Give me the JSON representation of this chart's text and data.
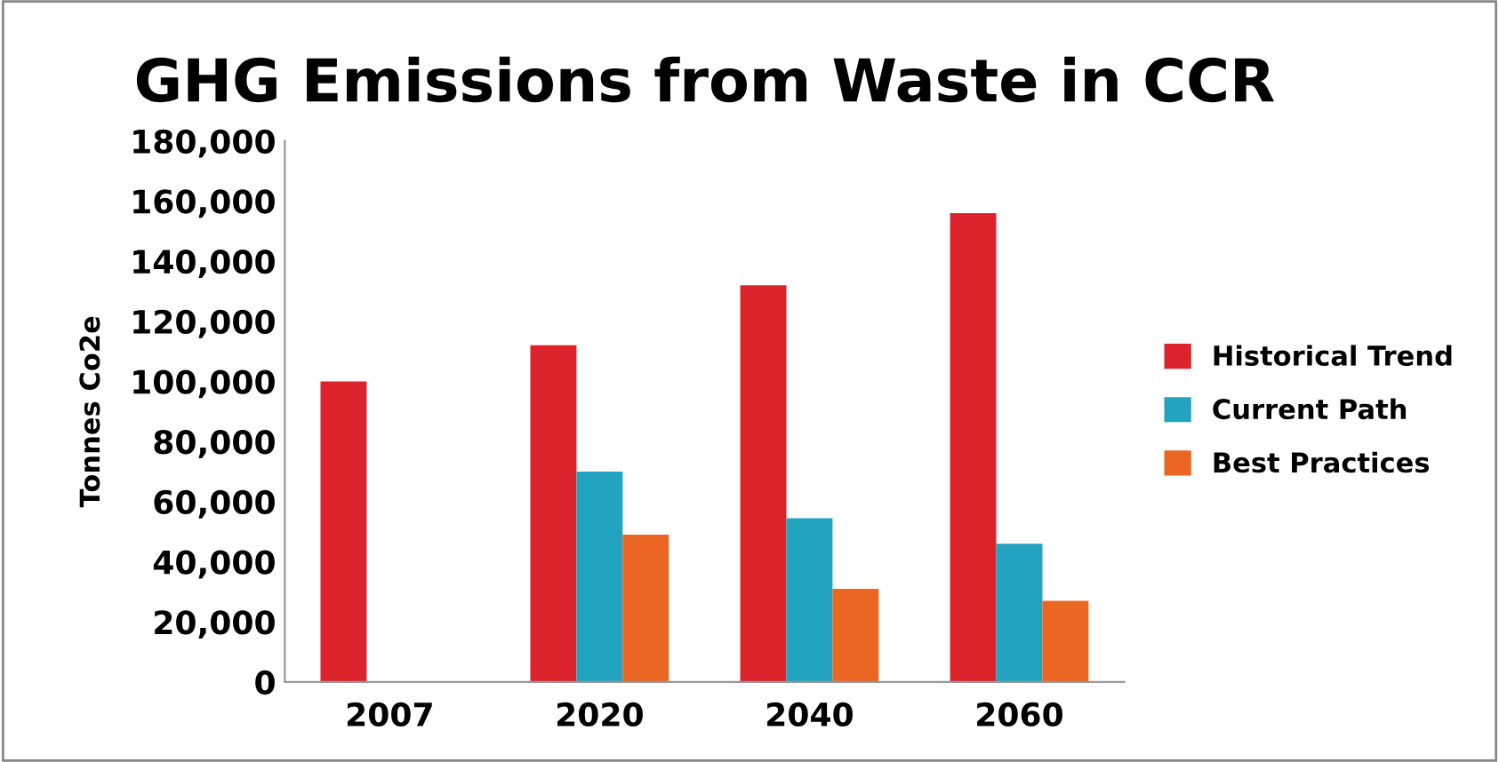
{
  "chart_data": {
    "type": "bar",
    "title": "GHG Emissions from Waste in CCR",
    "ylabel": "Tonnes Co2e",
    "categories": [
      "2007",
      "2020",
      "2040",
      "2060"
    ],
    "series": [
      {
        "name": "Historical Trend",
        "color": "#dc232b",
        "values": [
          100000,
          112000,
          132000,
          156000
        ]
      },
      {
        "name": "Current Path",
        "color": "#22a3c0",
        "values": [
          null,
          70000,
          54500,
          46000
        ]
      },
      {
        "name": "Best Practices",
        "color": "#ea6622",
        "values": [
          null,
          49000,
          31000,
          27000
        ]
      }
    ],
    "ylim": [
      0,
      180000
    ],
    "yticks": [
      {
        "value": 0,
        "label": "0"
      },
      {
        "value": 20000,
        "label": "20,000"
      },
      {
        "value": 40000,
        "label": "40,000"
      },
      {
        "value": 60000,
        "label": "60,000"
      },
      {
        "value": 80000,
        "label": "80,000"
      },
      {
        "value": 100000,
        "label": "100,000"
      },
      {
        "value": 120000,
        "label": "120,000"
      },
      {
        "value": 140000,
        "label": "140,000"
      },
      {
        "value": 160000,
        "label": "160,000"
      },
      {
        "value": 180000,
        "label": "180,000"
      }
    ],
    "grid": false,
    "legend": "right"
  }
}
